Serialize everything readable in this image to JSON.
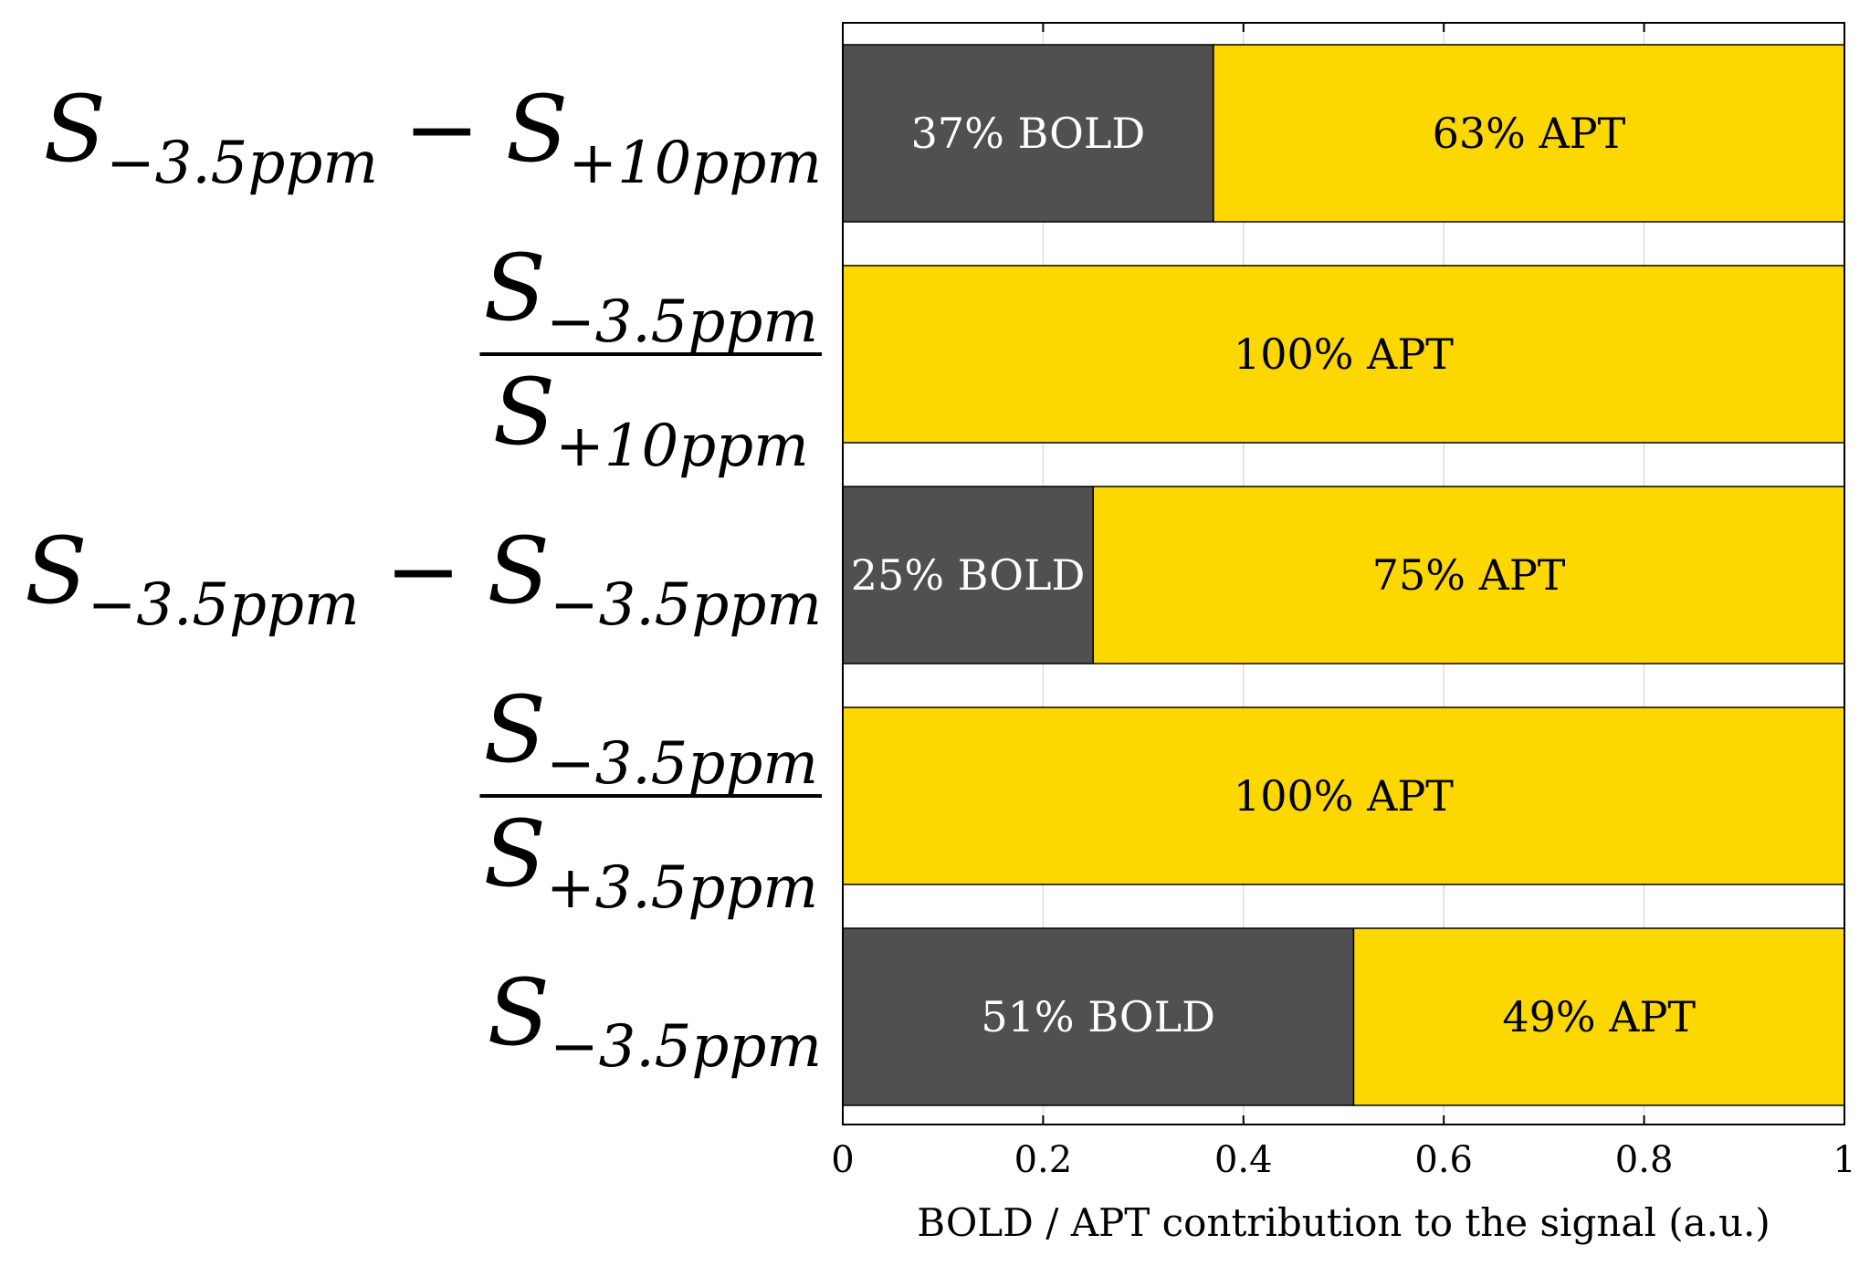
{
  "chart_data": {
    "type": "bar",
    "orientation": "horizontal",
    "stacked": true,
    "categories": [
      {
        "kind": "diff",
        "a": {
          "base": "S",
          "sub": "−3.5ppm"
        },
        "op": "−",
        "b": {
          "base": "S",
          "sub": "+10ppm"
        }
      },
      {
        "kind": "frac",
        "num": {
          "base": "S",
          "sub": "−3.5ppm"
        },
        "den": {
          "base": "S",
          "sub": "+10ppm"
        }
      },
      {
        "kind": "diff",
        "a": {
          "base": "S",
          "sub": "−3.5ppm"
        },
        "op": "−",
        "b": {
          "base": "S",
          "sub": "−3.5ppm"
        }
      },
      {
        "kind": "frac",
        "num": {
          "base": "S",
          "sub": "−3.5ppm"
        },
        "den": {
          "base": "S",
          "sub": "+3.5ppm"
        }
      },
      {
        "kind": "single",
        "a": {
          "base": "S",
          "sub": "−3.5ppm"
        }
      }
    ],
    "series": [
      {
        "name": "BOLD",
        "color": "#505050",
        "text_color": "#ffffff",
        "values": [
          0.37,
          0,
          0.25,
          0,
          0.51
        ],
        "labels": [
          "37% BOLD",
          "",
          "25% BOLD",
          "",
          "51% BOLD"
        ]
      },
      {
        "name": "APT",
        "color": "#fcd700",
        "text_color": "#000000",
        "values": [
          0.63,
          1.0,
          0.75,
          1.0,
          0.49
        ],
        "labels": [
          "63% APT",
          "100% APT",
          "75% APT",
          "100% APT",
          "49% APT"
        ]
      }
    ],
    "xlim": [
      0,
      1
    ],
    "xticks": [
      0,
      0.2,
      0.4,
      0.6,
      0.8,
      1
    ],
    "xtick_labels": [
      "0",
      "0.2",
      "0.4",
      "0.6",
      "0.8",
      "1"
    ],
    "xlabel": "BOLD / APT contribution to the signal (a.u.)",
    "ylabel": "",
    "title": "",
    "grid": "vertical",
    "grid_color": "#dddddd"
  }
}
